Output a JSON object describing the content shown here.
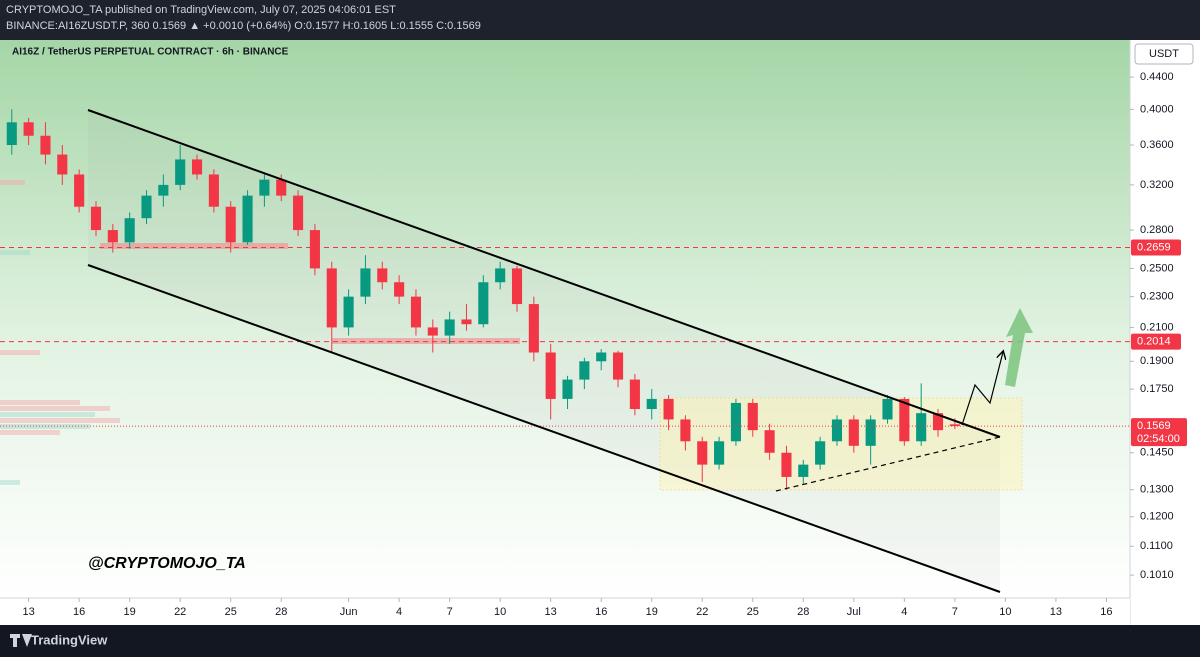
{
  "header": {
    "line1": "CRYPTOMOJO_TA published on TradingView.com, July 07, 2025 04:06:01 EST",
    "line2": "BINANCE:AI16ZUSDT.P, 360 0.1569 ▲ +0.0010 (+0.64%) O:0.1577 H:0.1605 L:0.1555 C:0.1569"
  },
  "footer": {
    "logo": "TradingView"
  },
  "chart_data": {
    "type": "candlestick",
    "title": "AI16Z / TetherUS PERPETUAL CONTRACT · 6h · BINANCE",
    "currency": "USDT",
    "watermark": "@CRYPTOMOJO_TA",
    "log_scale": true,
    "up_color": "#089981",
    "down_color": "#f23645",
    "x": [
      132,
      133,
      134,
      135,
      136,
      137,
      138,
      139,
      140,
      141,
      142,
      143,
      144,
      145,
      146,
      147,
      148,
      149,
      150,
      151,
      152,
      153,
      154,
      155,
      156,
      157,
      158,
      159,
      160,
      161,
      162,
      163,
      164,
      165,
      166,
      167,
      168,
      169,
      170,
      171,
      172,
      173,
      174,
      175,
      176,
      177,
      178,
      179,
      180,
      181,
      182,
      183,
      184,
      185,
      186,
      187,
      188
    ],
    "open": [
      0.36,
      0.385,
      0.37,
      0.35,
      0.33,
      0.3,
      0.28,
      0.27,
      0.29,
      0.31,
      0.32,
      0.345,
      0.33,
      0.3,
      0.27,
      0.31,
      0.325,
      0.31,
      0.28,
      0.25,
      0.21,
      0.23,
      0.25,
      0.24,
      0.23,
      0.21,
      0.205,
      0.215,
      0.212,
      0.24,
      0.25,
      0.225,
      0.195,
      0.17,
      0.18,
      0.19,
      0.195,
      0.18,
      0.165,
      0.17,
      0.16,
      0.15,
      0.14,
      0.15,
      0.168,
      0.155,
      0.145,
      0.135,
      0.14,
      0.15,
      0.16,
      0.148,
      0.16,
      0.17,
      0.15,
      0.163,
      0.1577
    ],
    "high": [
      0.4,
      0.39,
      0.385,
      0.36,
      0.335,
      0.305,
      0.285,
      0.295,
      0.315,
      0.33,
      0.36,
      0.35,
      0.335,
      0.305,
      0.315,
      0.33,
      0.33,
      0.315,
      0.285,
      0.255,
      0.235,
      0.26,
      0.255,
      0.245,
      0.235,
      0.215,
      0.22,
      0.225,
      0.245,
      0.255,
      0.252,
      0.23,
      0.2,
      0.182,
      0.192,
      0.197,
      0.196,
      0.183,
      0.175,
      0.172,
      0.162,
      0.152,
      0.152,
      0.17,
      0.17,
      0.158,
      0.148,
      0.142,
      0.152,
      0.162,
      0.162,
      0.162,
      0.172,
      0.171,
      0.178,
      0.165,
      0.1605
    ],
    "low": [
      0.35,
      0.36,
      0.34,
      0.32,
      0.295,
      0.275,
      0.262,
      0.265,
      0.285,
      0.3,
      0.315,
      0.325,
      0.295,
      0.262,
      0.268,
      0.3,
      0.305,
      0.275,
      0.245,
      0.195,
      0.205,
      0.225,
      0.235,
      0.225,
      0.205,
      0.195,
      0.2,
      0.208,
      0.21,
      0.235,
      0.22,
      0.19,
      0.16,
      0.165,
      0.175,
      0.185,
      0.176,
      0.162,
      0.16,
      0.155,
      0.146,
      0.133,
      0.138,
      0.148,
      0.152,
      0.142,
      0.13,
      0.132,
      0.138,
      0.148,
      0.145,
      0.14,
      0.158,
      0.148,
      0.148,
      0.152,
      0.1555
    ],
    "close": [
      0.385,
      0.37,
      0.35,
      0.33,
      0.3,
      0.28,
      0.27,
      0.29,
      0.31,
      0.32,
      0.345,
      0.33,
      0.3,
      0.27,
      0.31,
      0.325,
      0.31,
      0.28,
      0.25,
      0.21,
      0.23,
      0.25,
      0.24,
      0.23,
      0.21,
      0.205,
      0.215,
      0.212,
      0.24,
      0.25,
      0.225,
      0.195,
      0.17,
      0.18,
      0.19,
      0.195,
      0.18,
      0.165,
      0.17,
      0.16,
      0.15,
      0.14,
      0.15,
      0.168,
      0.155,
      0.145,
      0.135,
      0.14,
      0.15,
      0.16,
      0.148,
      0.16,
      0.17,
      0.15,
      0.163,
      0.155,
      0.1569
    ],
    "xlim": [
      131.3,
      198.4
    ],
    "xticks": [
      {
        "value": 133,
        "label": "13"
      },
      {
        "value": 136,
        "label": "16"
      },
      {
        "value": 139,
        "label": "19"
      },
      {
        "value": 142,
        "label": "22"
      },
      {
        "value": 145,
        "label": "25"
      },
      {
        "value": 148,
        "label": "28"
      },
      {
        "value": 152,
        "label": "Jun"
      },
      {
        "value": 155,
        "label": "4"
      },
      {
        "value": 158,
        "label": "7"
      },
      {
        "value": 161,
        "label": "10"
      },
      {
        "value": 164,
        "label": "13"
      },
      {
        "value": 167,
        "label": "16"
      },
      {
        "value": 170,
        "label": "19"
      },
      {
        "value": 173,
        "label": "22"
      },
      {
        "value": 176,
        "label": "25"
      },
      {
        "value": 179,
        "label": "28"
      },
      {
        "value": 182,
        "label": "Jul"
      },
      {
        "value": 185,
        "label": "4"
      },
      {
        "value": 188,
        "label": "7"
      },
      {
        "value": 191,
        "label": "10"
      },
      {
        "value": 194,
        "label": "13"
      },
      {
        "value": 197,
        "label": "16"
      }
    ],
    "ylim": [
      0.0944,
      0.491
    ],
    "yticks": [
      {
        "value": 0.44,
        "label": "0.4400"
      },
      {
        "value": 0.4,
        "label": "0.4000"
      },
      {
        "value": 0.36,
        "label": "0.3600"
      },
      {
        "value": 0.32,
        "label": "0.3200"
      },
      {
        "value": 0.28,
        "label": "0.2800"
      },
      {
        "value": 0.25,
        "label": "0.2500"
      },
      {
        "value": 0.23,
        "label": "0.2300"
      },
      {
        "value": 0.21,
        "label": "0.2100"
      },
      {
        "value": 0.19,
        "label": "0.1900"
      },
      {
        "value": 0.175,
        "label": "0.1750"
      },
      {
        "value": 0.145,
        "label": "0.1450"
      },
      {
        "value": 0.13,
        "label": "0.1300"
      },
      {
        "value": 0.12,
        "label": "0.1200"
      },
      {
        "value": 0.11,
        "label": "0.1100"
      },
      {
        "value": 0.101,
        "label": "0.1010"
      }
    ],
    "levels": [
      0.2659,
      0.2014
    ],
    "level_color": "#f23645",
    "last_price": 0.1569,
    "countdown": "02:54:00"
  }
}
